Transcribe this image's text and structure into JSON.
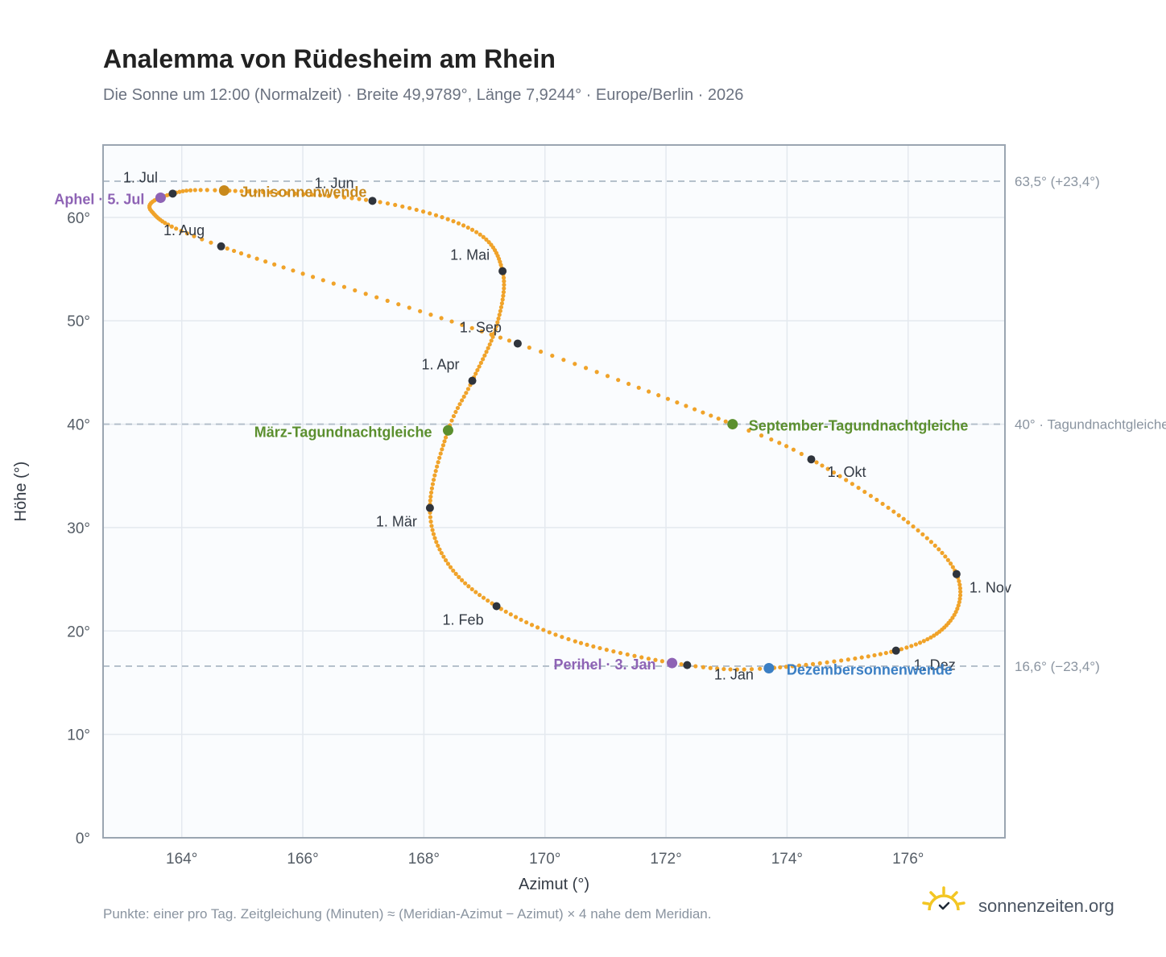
{
  "header": {
    "title": "Analemma von Rüdesheim am Rhein",
    "subtitle": "Die Sonne um 12:00 (Normalzeit) · Breite 49,9789°, Länge 7,9244° · Europe/Berlin · 2026"
  },
  "footer": {
    "note": "Punkte: einer pro Tag. Zeitgleichung (Minuten) ≈ (Meridian-Azimut − Azimut) × 4 nahe dem Meridian.",
    "brand": "sonnenzeiten.org",
    "brand_icon": "sun-check-icon"
  },
  "chart_data": {
    "type": "scatter",
    "xlabel": "Azimut (°)",
    "ylabel": "Höhe (°)",
    "xlim": [
      162.7,
      177.6
    ],
    "ylim": [
      0,
      67
    ],
    "x_ticks": [
      164,
      166,
      168,
      170,
      172,
      174,
      176
    ],
    "x_tick_labels": [
      "164°",
      "166°",
      "168°",
      "170°",
      "172°",
      "174°",
      "176°"
    ],
    "y_ticks": [
      0,
      10,
      20,
      30,
      40,
      50,
      60
    ],
    "y_tick_labels": [
      "0°",
      "10°",
      "20°",
      "30°",
      "40°",
      "50°",
      "60°"
    ],
    "grid": true,
    "colors": {
      "curve": "#f0a32a",
      "month_marker": "#2f343c",
      "june_solstice": "#c8891c",
      "equinox": "#5b8f2e",
      "december_solstice": "#3b7fc4",
      "apsis": "#8e63b5",
      "ref_line": "#b0bcc8",
      "plot_background": "#fafcfe",
      "plot_border": "#9aa5b1"
    },
    "reference_lines": [
      {
        "y": 63.5,
        "label": "63,5° (+23,4°)"
      },
      {
        "y": 40,
        "label": "40° · Tagundnachtgleiche"
      },
      {
        "y": 16.6,
        "label": "16,6° (−23,4°)"
      }
    ],
    "monthly_points": [
      {
        "label": "1. Jan",
        "x": 172.35,
        "y": 16.7
      },
      {
        "label": "1. Feb",
        "x": 169.2,
        "y": 22.4
      },
      {
        "label": "1. Mär",
        "x": 168.1,
        "y": 31.9
      },
      {
        "label": "1. Apr",
        "x": 168.8,
        "y": 44.2
      },
      {
        "label": "1. Mai",
        "x": 169.3,
        "y": 54.8
      },
      {
        "label": "1. Jun",
        "x": 167.15,
        "y": 61.6
      },
      {
        "label": "1. Jul",
        "x": 163.85,
        "y": 62.3
      },
      {
        "label": "1. Aug",
        "x": 164.65,
        "y": 57.2
      },
      {
        "label": "1. Sep",
        "x": 169.55,
        "y": 47.8
      },
      {
        "label": "1. Okt",
        "x": 174.4,
        "y": 36.6
      },
      {
        "label": "1. Nov",
        "x": 176.8,
        "y": 25.5
      },
      {
        "label": "1. Dez",
        "x": 175.8,
        "y": 18.1
      }
    ],
    "events": [
      {
        "label": "Junisonnenwende",
        "x": 164.7,
        "y": 62.6,
        "kind": "june_solstice"
      },
      {
        "label": "März-Tagundnachtgleiche",
        "x": 168.4,
        "y": 39.4,
        "kind": "equinox"
      },
      {
        "label": "September-Tagundnachtgleiche",
        "x": 173.1,
        "y": 40.0,
        "kind": "equinox"
      },
      {
        "label": "Dezembersonnenwende",
        "x": 173.7,
        "y": 16.4,
        "kind": "december_solstice"
      },
      {
        "label": "Aphel · 5. Jul",
        "x": 163.65,
        "y": 61.9,
        "kind": "apsis"
      },
      {
        "label": "Perihel · 3. Jan",
        "x": 172.1,
        "y": 16.9,
        "kind": "apsis"
      }
    ],
    "curve_anchors": [
      {
        "doy": 0,
        "x": 172.35,
        "y": 16.7
      },
      {
        "doy": 17,
        "x": 170.5,
        "y": 19.0
      },
      {
        "doy": 31,
        "x": 169.2,
        "y": 22.4
      },
      {
        "doy": 45,
        "x": 168.4,
        "y": 26.5
      },
      {
        "doy": 59,
        "x": 168.1,
        "y": 31.9
      },
      {
        "doy": 78,
        "x": 168.4,
        "y": 39.4
      },
      {
        "doy": 90,
        "x": 168.8,
        "y": 44.2
      },
      {
        "doy": 105,
        "x": 169.2,
        "y": 49.5
      },
      {
        "doy": 120,
        "x": 169.3,
        "y": 54.8
      },
      {
        "doy": 135,
        "x": 168.8,
        "y": 58.8
      },
      {
        "doy": 151,
        "x": 167.15,
        "y": 61.6
      },
      {
        "doy": 171,
        "x": 164.7,
        "y": 62.6
      },
      {
        "doy": 181,
        "x": 163.85,
        "y": 62.3
      },
      {
        "doy": 195,
        "x": 163.5,
        "y": 60.6
      },
      {
        "doy": 212,
        "x": 164.65,
        "y": 57.2
      },
      {
        "doy": 243,
        "x": 169.55,
        "y": 47.8
      },
      {
        "doy": 265,
        "x": 173.1,
        "y": 40.0
      },
      {
        "doy": 273,
        "x": 174.4,
        "y": 36.6
      },
      {
        "doy": 290,
        "x": 176.0,
        "y": 30.5
      },
      {
        "doy": 304,
        "x": 176.8,
        "y": 25.5
      },
      {
        "doy": 318,
        "x": 176.7,
        "y": 21.0
      },
      {
        "doy": 334,
        "x": 175.8,
        "y": 18.1
      },
      {
        "doy": 354,
        "x": 173.7,
        "y": 16.4
      },
      {
        "doy": 365,
        "x": 172.35,
        "y": 16.7
      }
    ]
  }
}
